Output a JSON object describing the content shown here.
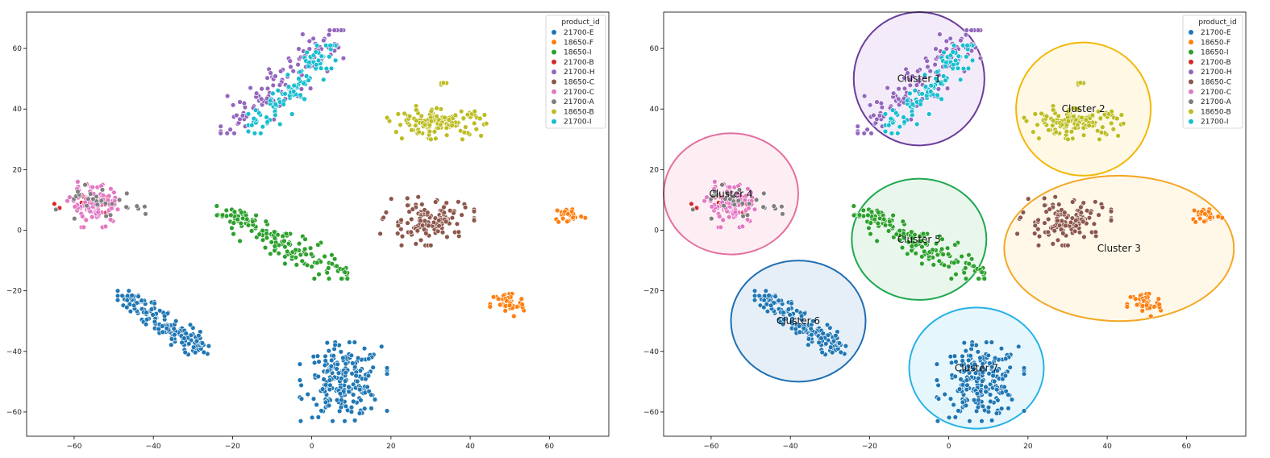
{
  "chart_data": [
    {
      "type": "scatter",
      "title": "",
      "xlabel": "",
      "ylabel": "",
      "xlim": [
        -72,
        75
      ],
      "ylim": [
        -68,
        72
      ],
      "xticks": [
        -60,
        -40,
        -20,
        0,
        20,
        40,
        60
      ],
      "yticks": [
        -60,
        -40,
        -20,
        0,
        20,
        40,
        60
      ],
      "grid": false,
      "legend": {
        "title": "product_id",
        "placement": "top-right"
      },
      "series": [
        {
          "name": "21700-E",
          "color": "#1f77b4",
          "clusters": [
            {
              "x": [
                -48,
                -27
              ],
              "y": [
                -40,
                -21
              ],
              "n": 160
            },
            {
              "x": -2,
              "y": [
                -62,
                -38
              ],
              "x2": 18,
              "n": 220
            }
          ]
        },
        {
          "name": "18650-F",
          "color": "#ff7f0e",
          "clusters": [
            {
              "x": [
                45,
                54
              ],
              "y": [
                -29,
                -20
              ],
              "n": 45
            },
            {
              "x": [
                61,
                69
              ],
              "y": [
                2,
                8
              ],
              "n": 25
            }
          ]
        },
        {
          "name": "18650-I",
          "color": "#2ca02c",
          "clusters": [
            {
              "x": [
                -23,
                8
              ],
              "y": [
                -15,
                7
              ],
              "n": 150
            }
          ]
        },
        {
          "name": "21700-B",
          "color": "#d62728",
          "clusters": [
            {
              "x": [
                -64,
                -45
              ],
              "y": [
                1,
                15
              ],
              "n": 14
            }
          ]
        },
        {
          "name": "21700-H",
          "color": "#9467bd",
          "clusters": [
            {
              "x": [
                -22,
                7
              ],
              "y": [
                33,
                65
              ],
              "n": 120
            }
          ]
        },
        {
          "name": "18650-C",
          "color": "#8c564b",
          "clusters": [
            {
              "x": [
                18,
                40
              ],
              "y": [
                -4,
                10
              ],
              "n": 130
            }
          ]
        },
        {
          "name": "21700-C",
          "color": "#e377c2",
          "clusters": [
            {
              "x": [
                -61,
                -48
              ],
              "y": [
                2,
                15
              ],
              "n": 110
            }
          ]
        },
        {
          "name": "21700-A",
          "color": "#7f7f7f",
          "clusters": [
            {
              "x": [
                -66,
                -42
              ],
              "y": [
                3,
                14
              ],
              "n": 30
            }
          ]
        },
        {
          "name": "18650-B",
          "color": "#bcbd22",
          "clusters": [
            {
              "x": [
                20,
                44
              ],
              "y": [
                31,
                40
              ],
              "n": 130
            },
            {
              "x": [
                32,
                34
              ],
              "y": [
                48,
                49
              ],
              "n": 4
            }
          ]
        },
        {
          "name": "21700-I",
          "color": "#17becf",
          "clusters": [
            {
              "x": [
                -15,
                5
              ],
              "y": [
                33,
                60
              ],
              "n": 110
            }
          ]
        }
      ]
    },
    {
      "type": "scatter",
      "title": "",
      "xlabel": "",
      "ylabel": "",
      "xlim": [
        -72,
        75
      ],
      "ylim": [
        -68,
        72
      ],
      "xticks": [
        -60,
        -40,
        -20,
        0,
        20,
        40,
        60
      ],
      "yticks": [
        -60,
        -40,
        -20,
        0,
        20,
        40,
        60
      ],
      "grid": false,
      "legend": {
        "title": "product_id",
        "placement": "top-right"
      },
      "annotations": [
        {
          "label": "Cluster 1",
          "cx": -7.5,
          "cy": 50,
          "rx": 16.5,
          "ry": 22,
          "stroke": "#6a3d9a",
          "fill": "#f3ebfa"
        },
        {
          "label": "Cluster 2",
          "cx": 34,
          "cy": 40,
          "rx": 17,
          "ry": 22,
          "stroke": "#f2b705",
          "fill": "#fff8e5"
        },
        {
          "label": "Cluster 3",
          "cx": 43,
          "cy": -6,
          "rx": 29,
          "ry": 24,
          "stroke": "#f5a623",
          "fill": "#fff8e9"
        },
        {
          "label": "Cluster 4",
          "cx": -55,
          "cy": 12,
          "rx": 17,
          "ry": 20,
          "stroke": "#e36fa0",
          "fill": "#fdeef4"
        },
        {
          "label": "Cluster 5",
          "cx": -7.5,
          "cy": -3,
          "rx": 17,
          "ry": 20,
          "stroke": "#1fa84f",
          "fill": "#e8f6ec"
        },
        {
          "label": "Cluster 6",
          "cx": -38,
          "cy": -30,
          "rx": 17,
          "ry": 20,
          "stroke": "#1f6fb4",
          "fill": "#e6eff8"
        },
        {
          "label": "Cluster 7",
          "cx": 7,
          "cy": -45.5,
          "rx": 17,
          "ry": 20,
          "stroke": "#27b2e6",
          "fill": "#e6f6fd"
        }
      ]
    }
  ]
}
